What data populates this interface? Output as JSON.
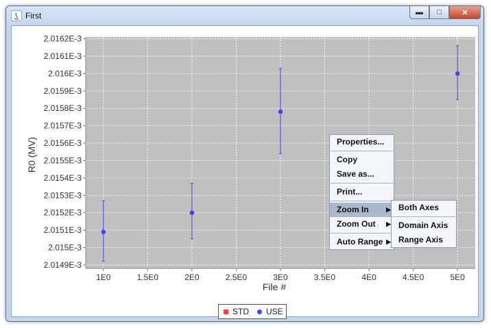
{
  "window": {
    "title": "First",
    "controls": [
      "minimize",
      "maximize",
      "close"
    ]
  },
  "chart_data": {
    "type": "scatter",
    "title": "",
    "xlabel": "File #",
    "ylabel": "R0 (MV)",
    "xlim": [
      0.8,
      5.2
    ],
    "ylim": [
      0.00201488,
      0.00201621
    ],
    "x_ticks": [
      "1E0",
      "1.5E0",
      "2E0",
      "2.5E0",
      "3E0",
      "3.5E0",
      "4E0",
      "4.5E0",
      "5E0"
    ],
    "x_tick_values": [
      1,
      1.5,
      2,
      2.5,
      3,
      3.5,
      4,
      4.5,
      5
    ],
    "y_ticks": [
      "2.0149E-3",
      "2.015E-3",
      "2.0151E-3",
      "2.0152E-3",
      "2.0153E-3",
      "2.0154E-3",
      "2.0155E-3",
      "2.0156E-3",
      "2.0157E-3",
      "2.0158E-3",
      "2.0159E-3",
      "2.016E-3",
      "2.0161E-3",
      "2.0162E-3"
    ],
    "y_tick_values": [
      0.0020149,
      0.002015,
      0.0020151,
      0.0020152,
      0.0020153,
      0.0020154,
      0.0020155,
      0.0020156,
      0.0020157,
      0.0020158,
      0.0020159,
      0.002016,
      0.0020161,
      0.0020162
    ],
    "grid": true,
    "legend_position": "bottom-center",
    "series": [
      {
        "name": "STD",
        "color": "#ee4444",
        "points": []
      },
      {
        "name": "USE",
        "color": "#4444ee",
        "points": [
          {
            "x": 1,
            "y": 0.00201509,
            "ylow": 0.00201492,
            "yhigh": 0.00201527
          },
          {
            "x": 2,
            "y": 0.0020152,
            "ylow": 0.00201505,
            "yhigh": 0.00201537
          },
          {
            "x": 3,
            "y": 0.00201578,
            "ylow": 0.00201554,
            "yhigh": 0.00201603
          },
          {
            "x": 5,
            "y": 0.002016,
            "ylow": 0.00201585,
            "yhigh": 0.00201616
          }
        ]
      }
    ]
  },
  "context_menu": {
    "items": [
      "Properties...",
      "Copy",
      "Save as...",
      "Print...",
      "Zoom In",
      "Zoom Out",
      "Auto Range"
    ],
    "highlighted": "Zoom In",
    "submenu": [
      "Both Axes",
      "Domain Axis",
      "Range Axis"
    ]
  }
}
